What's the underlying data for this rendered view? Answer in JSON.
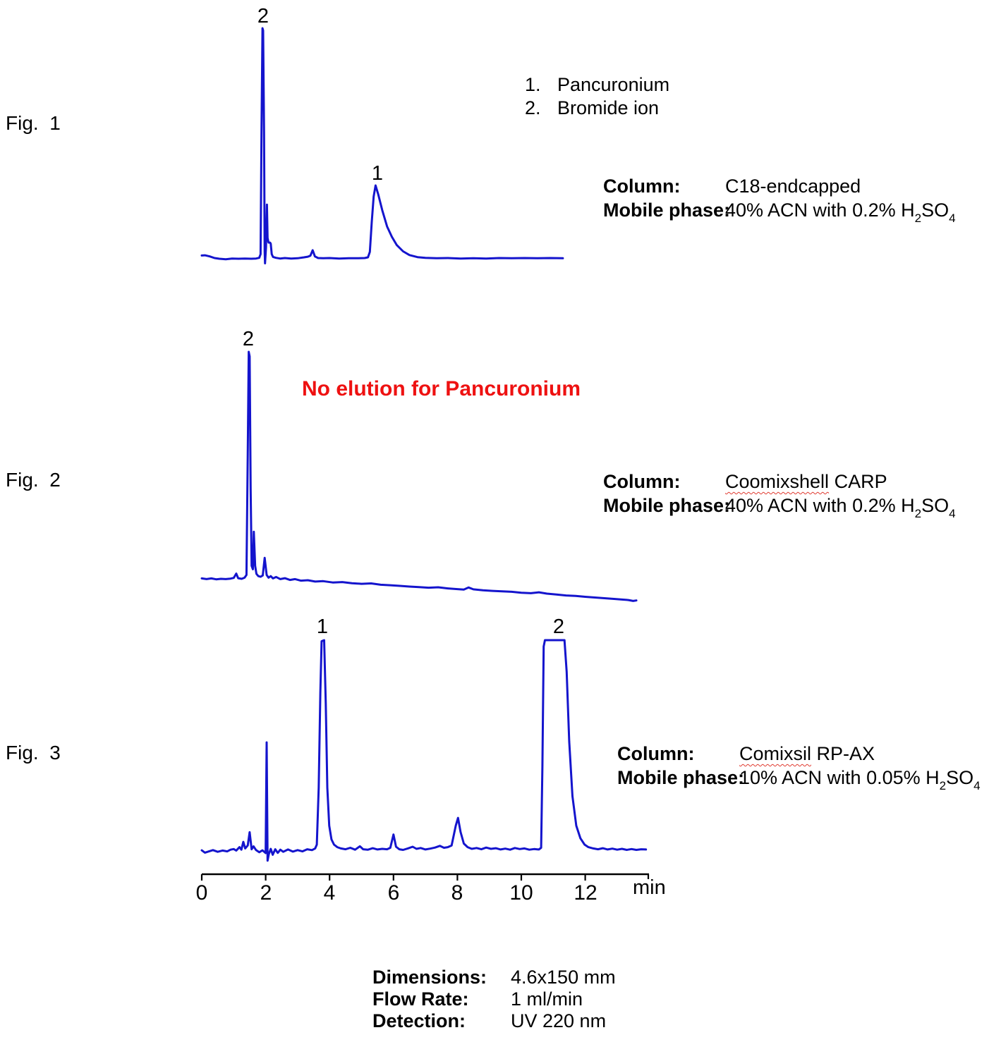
{
  "colors": {
    "trace": "#1414cd",
    "annotation_red": "#ee1111",
    "text": "#000000",
    "spellcheck_underline": "#e03a2f"
  },
  "figures": [
    {
      "label": "Fig.  1",
      "peak_labels": [
        "2",
        "1"
      ],
      "info": {
        "rows": [
          {
            "label": "Column:",
            "parts": [
              {
                "t": "C18-endcapped"
              }
            ]
          },
          {
            "label": "Mobile phase:",
            "parts": [
              {
                "t": "40% ACN with 0.2% H"
              },
              {
                "t": "2",
                "sub": true
              },
              {
                "t": "SO"
              },
              {
                "t": "4",
                "sub": true
              }
            ]
          }
        ]
      }
    },
    {
      "label": "Fig.  2",
      "annotation": "No elution for Pancuronium",
      "peak_labels": [
        "2"
      ],
      "info": {
        "rows": [
          {
            "label": "Column:",
            "parts": [
              {
                "t": "Coomixshell",
                "wavy": true
              },
              {
                "t": " CARP"
              }
            ]
          },
          {
            "label": "Mobile phase:",
            "parts": [
              {
                "t": "40% ACN with 0.2% H"
              },
              {
                "t": "2",
                "sub": true
              },
              {
                "t": "SO"
              },
              {
                "t": "4",
                "sub": true
              }
            ]
          }
        ]
      }
    },
    {
      "label": "Fig.  3",
      "peak_labels": [
        "1",
        "2"
      ],
      "info": {
        "rows": [
          {
            "label": "Column:",
            "parts": [
              {
                "t": "Comixsil",
                "wavy": true
              },
              {
                "t": " RP-AX"
              }
            ]
          },
          {
            "label": "Mobile phase:",
            "parts": [
              {
                "t": "10% ACN with 0.05% H"
              },
              {
                "t": "2",
                "sub": true
              },
              {
                "t": "SO"
              },
              {
                "t": "4",
                "sub": true
              }
            ]
          }
        ]
      }
    }
  ],
  "legend": {
    "items": [
      {
        "num": "1.",
        "name": "Pancuronium"
      },
      {
        "num": "2.",
        "name": "Bromide ion"
      }
    ]
  },
  "axis": {
    "tick_labels": [
      "0",
      "2",
      "4",
      "6",
      "8",
      "10",
      "12"
    ],
    "unit": "min"
  },
  "details": {
    "rows": [
      {
        "label": "Dimensions:",
        "value": "4.6x150 mm"
      },
      {
        "label": "Flow Rate:",
        "value": "1 ml/min"
      },
      {
        "label": "Detection:",
        "value": "UV 220 nm"
      }
    ]
  },
  "chart_data": [
    {
      "fig": "Fig. 1",
      "type": "line",
      "title": "Chromatogram on C18-endcapped, 40% ACN with 0.2% H2SO4",
      "x_unit": "min",
      "x_range": [
        0,
        11.3
      ],
      "y_range_rel": [
        -5,
        105
      ],
      "legend_position": "top-right",
      "grid": false,
      "peaks": [
        {
          "label": "2",
          "compound": "Bromide ion",
          "rt_min": 1.9,
          "height_rel": 100
        },
        {
          "label": "1",
          "compound": "Pancuronium",
          "rt_min": 5.45,
          "height_rel": 32,
          "tailing": true
        }
      ],
      "trace": [
        [
          0,
          1.4
        ],
        [
          0.1,
          1.5
        ],
        [
          0.25,
          1
        ],
        [
          0.4,
          0.3
        ],
        [
          0.55,
          0
        ],
        [
          0.75,
          -0.2
        ],
        [
          0.95,
          0.1
        ],
        [
          1.15,
          0
        ],
        [
          1.35,
          0.1
        ],
        [
          1.55,
          0
        ],
        [
          1.7,
          0.1
        ],
        [
          1.8,
          0.4
        ],
        [
          1.84,
          2
        ],
        [
          1.87,
          55
        ],
        [
          1.9,
          100
        ],
        [
          1.92,
          99
        ],
        [
          1.95,
          55
        ],
        [
          1.97,
          3
        ],
        [
          1.98,
          -2
        ],
        [
          2.01,
          5
        ],
        [
          2.04,
          23.5
        ],
        [
          2.06,
          9
        ],
        [
          2.09,
          7
        ],
        [
          2.14,
          7
        ],
        [
          2.16,
          6.5
        ],
        [
          2.19,
          2
        ],
        [
          2.23,
          0.8
        ],
        [
          2.32,
          0.4
        ],
        [
          2.45,
          0.1
        ],
        [
          2.6,
          0.3
        ],
        [
          2.8,
          0.1
        ],
        [
          3,
          0.2
        ],
        [
          3.2,
          0.6
        ],
        [
          3.32,
          0.9
        ],
        [
          3.4,
          1.3
        ],
        [
          3.47,
          3.7
        ],
        [
          3.54,
          1
        ],
        [
          3.64,
          0.3
        ],
        [
          3.8,
          0.2
        ],
        [
          4,
          0.3
        ],
        [
          4.3,
          0.1
        ],
        [
          4.6,
          0.2
        ],
        [
          4.9,
          0.2
        ],
        [
          5.1,
          0.3
        ],
        [
          5.2,
          0.6
        ],
        [
          5.26,
          3
        ],
        [
          5.32,
          16
        ],
        [
          5.38,
          27
        ],
        [
          5.44,
          31.8
        ],
        [
          5.52,
          28
        ],
        [
          5.65,
          21
        ],
        [
          5.8,
          14
        ],
        [
          5.95,
          9.5
        ],
        [
          6.1,
          6
        ],
        [
          6.3,
          3.2
        ],
        [
          6.5,
          1.6
        ],
        [
          6.75,
          0.7
        ],
        [
          7,
          0.4
        ],
        [
          7.35,
          0.2
        ],
        [
          7.7,
          0.3
        ],
        [
          8.1,
          0.1
        ],
        [
          8.5,
          0.2
        ],
        [
          8.9,
          0.1
        ],
        [
          9.3,
          0.3
        ],
        [
          9.7,
          0.2
        ],
        [
          10.1,
          0.3
        ],
        [
          10.5,
          0.2
        ],
        [
          10.9,
          0.3
        ],
        [
          11.3,
          0.2
        ]
      ]
    },
    {
      "fig": "Fig. 2",
      "type": "line",
      "title": "Chromatogram on Coomixshell CARP, 40% ACN with 0.2% H2SO4",
      "x_unit": "min",
      "x_range": [
        0,
        13.6
      ],
      "y_range_rel": [
        -10,
        105
      ],
      "annotation": "No elution for Pancuronium",
      "grid": false,
      "peaks": [
        {
          "label": "2",
          "compound": "Bromide ion",
          "rt_min": 1.47,
          "height_rel": 100
        }
      ],
      "trace": [
        [
          0,
          0.5
        ],
        [
          0.15,
          0.2
        ],
        [
          0.3,
          0.5
        ],
        [
          0.45,
          0.1
        ],
        [
          0.6,
          0.3
        ],
        [
          0.75,
          0.2
        ],
        [
          0.9,
          0.4
        ],
        [
          1,
          0.7
        ],
        [
          1.08,
          2.6
        ],
        [
          1.14,
          0.6
        ],
        [
          1.25,
          0.3
        ],
        [
          1.34,
          0.8
        ],
        [
          1.4,
          2
        ],
        [
          1.44,
          55
        ],
        [
          1.47,
          100
        ],
        [
          1.5,
          98
        ],
        [
          1.53,
          40
        ],
        [
          1.56,
          6
        ],
        [
          1.6,
          4.5
        ],
        [
          1.63,
          21
        ],
        [
          1.67,
          6
        ],
        [
          1.71,
          2.5
        ],
        [
          1.77,
          1.5
        ],
        [
          1.84,
          1.2
        ],
        [
          1.91,
          1.8
        ],
        [
          1.97,
          9.5
        ],
        [
          2.03,
          2
        ],
        [
          2.09,
          0.8
        ],
        [
          2.16,
          1.5
        ],
        [
          2.23,
          0.5
        ],
        [
          2.33,
          1.1
        ],
        [
          2.46,
          0.2
        ],
        [
          2.6,
          0.6
        ],
        [
          2.76,
          -0.2
        ],
        [
          2.92,
          0.2
        ],
        [
          3.1,
          -0.5
        ],
        [
          3.32,
          -0.3
        ],
        [
          3.55,
          -0.9
        ],
        [
          3.8,
          -0.7
        ],
        [
          4.1,
          -1.3
        ],
        [
          4.4,
          -1.1
        ],
        [
          4.7,
          -1.6
        ],
        [
          5,
          -1.9
        ],
        [
          5.3,
          -1.7
        ],
        [
          5.6,
          -2.3
        ],
        [
          5.9,
          -2.5
        ],
        [
          6.2,
          -2.8
        ],
        [
          6.5,
          -3.1
        ],
        [
          6.8,
          -3.3
        ],
        [
          7.1,
          -3.6
        ],
        [
          7.4,
          -3.4
        ],
        [
          7.7,
          -3.9
        ],
        [
          8,
          -4.2
        ],
        [
          8.2,
          -4.4
        ],
        [
          8.35,
          -3.5
        ],
        [
          8.5,
          -4.3
        ],
        [
          8.8,
          -4.7
        ],
        [
          9.1,
          -5
        ],
        [
          9.4,
          -5.2
        ],
        [
          9.7,
          -5.4
        ],
        [
          10,
          -5.8
        ],
        [
          10.3,
          -6
        ],
        [
          10.55,
          -5.6
        ],
        [
          10.8,
          -6.2
        ],
        [
          11.1,
          -6.6
        ],
        [
          11.4,
          -7
        ],
        [
          11.7,
          -7.2
        ],
        [
          12,
          -7.6
        ],
        [
          12.3,
          -7.9
        ],
        [
          12.6,
          -8.2
        ],
        [
          12.9,
          -8.5
        ],
        [
          13.15,
          -8.8
        ],
        [
          13.35,
          -9
        ],
        [
          13.5,
          -9.4
        ],
        [
          13.6,
          -9.2
        ]
      ]
    },
    {
      "fig": "Fig. 3",
      "type": "line",
      "title": "Chromatogram on Comixsil RP-AX, 10% ACN with 0.05% H2SO4",
      "x_unit": "min",
      "x_range": [
        0,
        13.9
      ],
      "y_range_rel": [
        -6,
        105
      ],
      "x_ticks": [
        0,
        2,
        4,
        6,
        8,
        10,
        12
      ],
      "grid": false,
      "peaks": [
        {
          "label": "1",
          "compound": "Pancuronium",
          "rt_min": 3.78,
          "height_rel": 100
        },
        {
          "label": "2",
          "compound": "Bromide ion",
          "rt_min": 11.05,
          "height_rel": 100,
          "saturated_flat_top": true,
          "flat_top_span_min": [
            10.74,
            11.35
          ]
        },
        {
          "label": "",
          "compound": "unlabeled spike",
          "rt_min": 2.05,
          "height_rel": 51.5
        },
        {
          "label": "",
          "compound": "unlabeled minor peak",
          "rt_min": 6.0,
          "height_rel": 7.8
        },
        {
          "label": "",
          "compound": "unlabeled minor peak",
          "rt_min": 8.0,
          "height_rel": 15.7
        }
      ],
      "trace": [
        [
          0,
          0.3
        ],
        [
          0.1,
          -0.8
        ],
        [
          0.2,
          -0.3
        ],
        [
          0.35,
          0.4
        ],
        [
          0.5,
          -0.4
        ],
        [
          0.65,
          0.2
        ],
        [
          0.8,
          -0.2
        ],
        [
          0.9,
          0.6
        ],
        [
          1,
          0.9
        ],
        [
          1.08,
          0.2
        ],
        [
          1.18,
          1.8
        ],
        [
          1.24,
          0.6
        ],
        [
          1.3,
          4.3
        ],
        [
          1.36,
          1.2
        ],
        [
          1.44,
          2.6
        ],
        [
          1.5,
          8.9
        ],
        [
          1.56,
          0.8
        ],
        [
          1.62,
          2.2
        ],
        [
          1.7,
          0.4
        ],
        [
          1.8,
          -0.6
        ],
        [
          1.9,
          0.3
        ],
        [
          2,
          -1
        ],
        [
          2.03,
          51.5
        ],
        [
          2.06,
          -4.6
        ],
        [
          2.1,
          -1.5
        ],
        [
          2.16,
          1
        ],
        [
          2.22,
          -1.8
        ],
        [
          2.3,
          0.8
        ],
        [
          2.38,
          -0.9
        ],
        [
          2.46,
          0.6
        ],
        [
          2.55,
          -0.4
        ],
        [
          2.7,
          0.7
        ],
        [
          2.85,
          -0.3
        ],
        [
          3,
          0.4
        ],
        [
          3.15,
          -0.2
        ],
        [
          3.3,
          0.8
        ],
        [
          3.45,
          0.4
        ],
        [
          3.55,
          1.2
        ],
        [
          3.6,
          3
        ],
        [
          3.66,
          30
        ],
        [
          3.71,
          75
        ],
        [
          3.75,
          99.5
        ],
        [
          3.83,
          100
        ],
        [
          3.88,
          70
        ],
        [
          3.93,
          30
        ],
        [
          3.99,
          12
        ],
        [
          4.06,
          5.5
        ],
        [
          4.14,
          3
        ],
        [
          4.24,
          1.8
        ],
        [
          4.35,
          1.2
        ],
        [
          4.5,
          0.8
        ],
        [
          4.65,
          1.5
        ],
        [
          4.8,
          0.6
        ],
        [
          4.95,
          2.2
        ],
        [
          5.05,
          0.8
        ],
        [
          5.2,
          0.6
        ],
        [
          5.35,
          1.3
        ],
        [
          5.5,
          0.7
        ],
        [
          5.65,
          1
        ],
        [
          5.8,
          0.8
        ],
        [
          5.9,
          1.5
        ],
        [
          6,
          7.8
        ],
        [
          6.08,
          2
        ],
        [
          6.18,
          0.8
        ],
        [
          6.3,
          0.5
        ],
        [
          6.45,
          1.2
        ],
        [
          6.6,
          2
        ],
        [
          6.72,
          1
        ],
        [
          6.85,
          1.4
        ],
        [
          7,
          0.7
        ],
        [
          7.15,
          1.1
        ],
        [
          7.3,
          1.6
        ],
        [
          7.45,
          2.4
        ],
        [
          7.58,
          1.5
        ],
        [
          7.7,
          1.8
        ],
        [
          7.82,
          2.6
        ],
        [
          7.95,
          12
        ],
        [
          8.02,
          15.7
        ],
        [
          8.1,
          9
        ],
        [
          8.2,
          3.5
        ],
        [
          8.32,
          1.8
        ],
        [
          8.45,
          1
        ],
        [
          8.6,
          1.4
        ],
        [
          8.75,
          0.8
        ],
        [
          8.9,
          1.6
        ],
        [
          9.05,
          1
        ],
        [
          9.2,
          1.3
        ],
        [
          9.35,
          0.7
        ],
        [
          9.5,
          1.1
        ],
        [
          9.65,
          0.6
        ],
        [
          9.8,
          1.4
        ],
        [
          9.95,
          0.9
        ],
        [
          10.1,
          1.2
        ],
        [
          10.25,
          0.6
        ],
        [
          10.4,
          0.9
        ],
        [
          10.55,
          0.7
        ],
        [
          10.62,
          1.5
        ],
        [
          10.66,
          40
        ],
        [
          10.7,
          97
        ],
        [
          10.74,
          100
        ],
        [
          11.35,
          100
        ],
        [
          11.42,
          85
        ],
        [
          11.5,
          52
        ],
        [
          11.6,
          26
        ],
        [
          11.72,
          12
        ],
        [
          11.85,
          6
        ],
        [
          11.98,
          3
        ],
        [
          12.1,
          1.8
        ],
        [
          12.25,
          1.2
        ],
        [
          12.4,
          0.8
        ],
        [
          12.55,
          1.3
        ],
        [
          12.7,
          0.7
        ],
        [
          12.85,
          1.1
        ],
        [
          13,
          0.6
        ],
        [
          13.15,
          1
        ],
        [
          13.3,
          0.5
        ],
        [
          13.45,
          0.9
        ],
        [
          13.6,
          0.5
        ],
        [
          13.75,
          0.8
        ],
        [
          13.9,
          0.7
        ]
      ]
    }
  ]
}
